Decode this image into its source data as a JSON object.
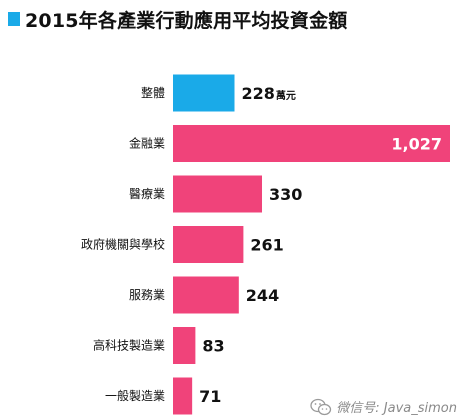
{
  "title": "2015年各產業行動應用平均投資金額",
  "watermark": "微信号: Java_simon",
  "colors": {
    "accent_blue": "#1aaae8",
    "accent_pink": "#f0437a"
  },
  "chart_data": {
    "type": "bar",
    "orientation": "horizontal",
    "title": "2015年各產業行動應用平均投資金額",
    "categories": [
      "整體",
      "金融業",
      "醫療業",
      "政府機關與學校",
      "服務業",
      "高科技製造業",
      "一般製造業"
    ],
    "values": [
      228,
      1027,
      330,
      261,
      244,
      83,
      71
    ],
    "value_labels": [
      "228",
      "1,027",
      "330",
      "261",
      "244",
      "83",
      "71"
    ],
    "unit": "萬元",
    "bar_colors": [
      "#1aaae8",
      "#f0437a",
      "#f0437a",
      "#f0437a",
      "#f0437a",
      "#f0437a",
      "#f0437a"
    ],
    "grid": false,
    "legend": "none"
  }
}
